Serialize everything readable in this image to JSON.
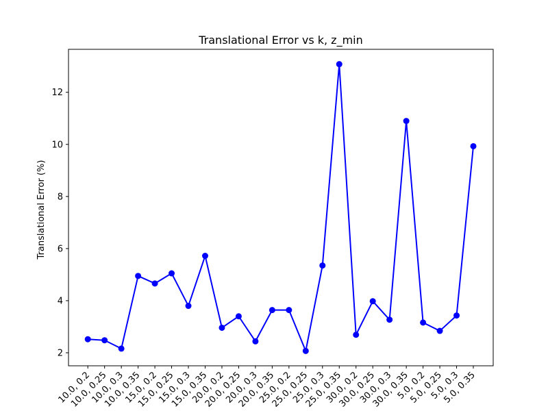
{
  "chart_data": {
    "type": "line",
    "title": "Translational Error vs k, z_min",
    "xlabel": "",
    "ylabel": "Translational Error (%)",
    "categories": [
      "10.0, 0.2",
      "10.0, 0.25",
      "10.0, 0.3",
      "10.0, 0.35",
      "15.0, 0.2",
      "15.0, 0.25",
      "15.0, 0.3",
      "15.0, 0.35",
      "20.0, 0.2",
      "20.0, 0.25",
      "20.0, 0.3",
      "20.0, 0.35",
      "25.0, 0.2",
      "25.0, 0.25",
      "25.0, 0.3",
      "25.0, 0.35",
      "30.0, 0.2",
      "30.0, 0.25",
      "30.0, 0.3",
      "30.0, 0.35",
      "5.0, 0.2",
      "5.0, 0.25",
      "5.0, 0.3",
      "5.0, 0.35"
    ],
    "values": [
      2.52,
      2.48,
      2.16,
      4.95,
      4.66,
      5.05,
      3.8,
      5.72,
      2.96,
      3.4,
      2.44,
      3.64,
      3.64,
      2.07,
      5.35,
      13.08,
      2.69,
      3.98,
      3.27,
      10.9,
      3.16,
      2.84,
      3.43,
      9.93
    ],
    "ylim": [
      1.5,
      13.65
    ],
    "yticks": [
      "2",
      "4",
      "6",
      "8",
      "10",
      "12"
    ],
    "grid": false,
    "legend": "none",
    "series_color": "#0000ff",
    "marker": "circle"
  }
}
